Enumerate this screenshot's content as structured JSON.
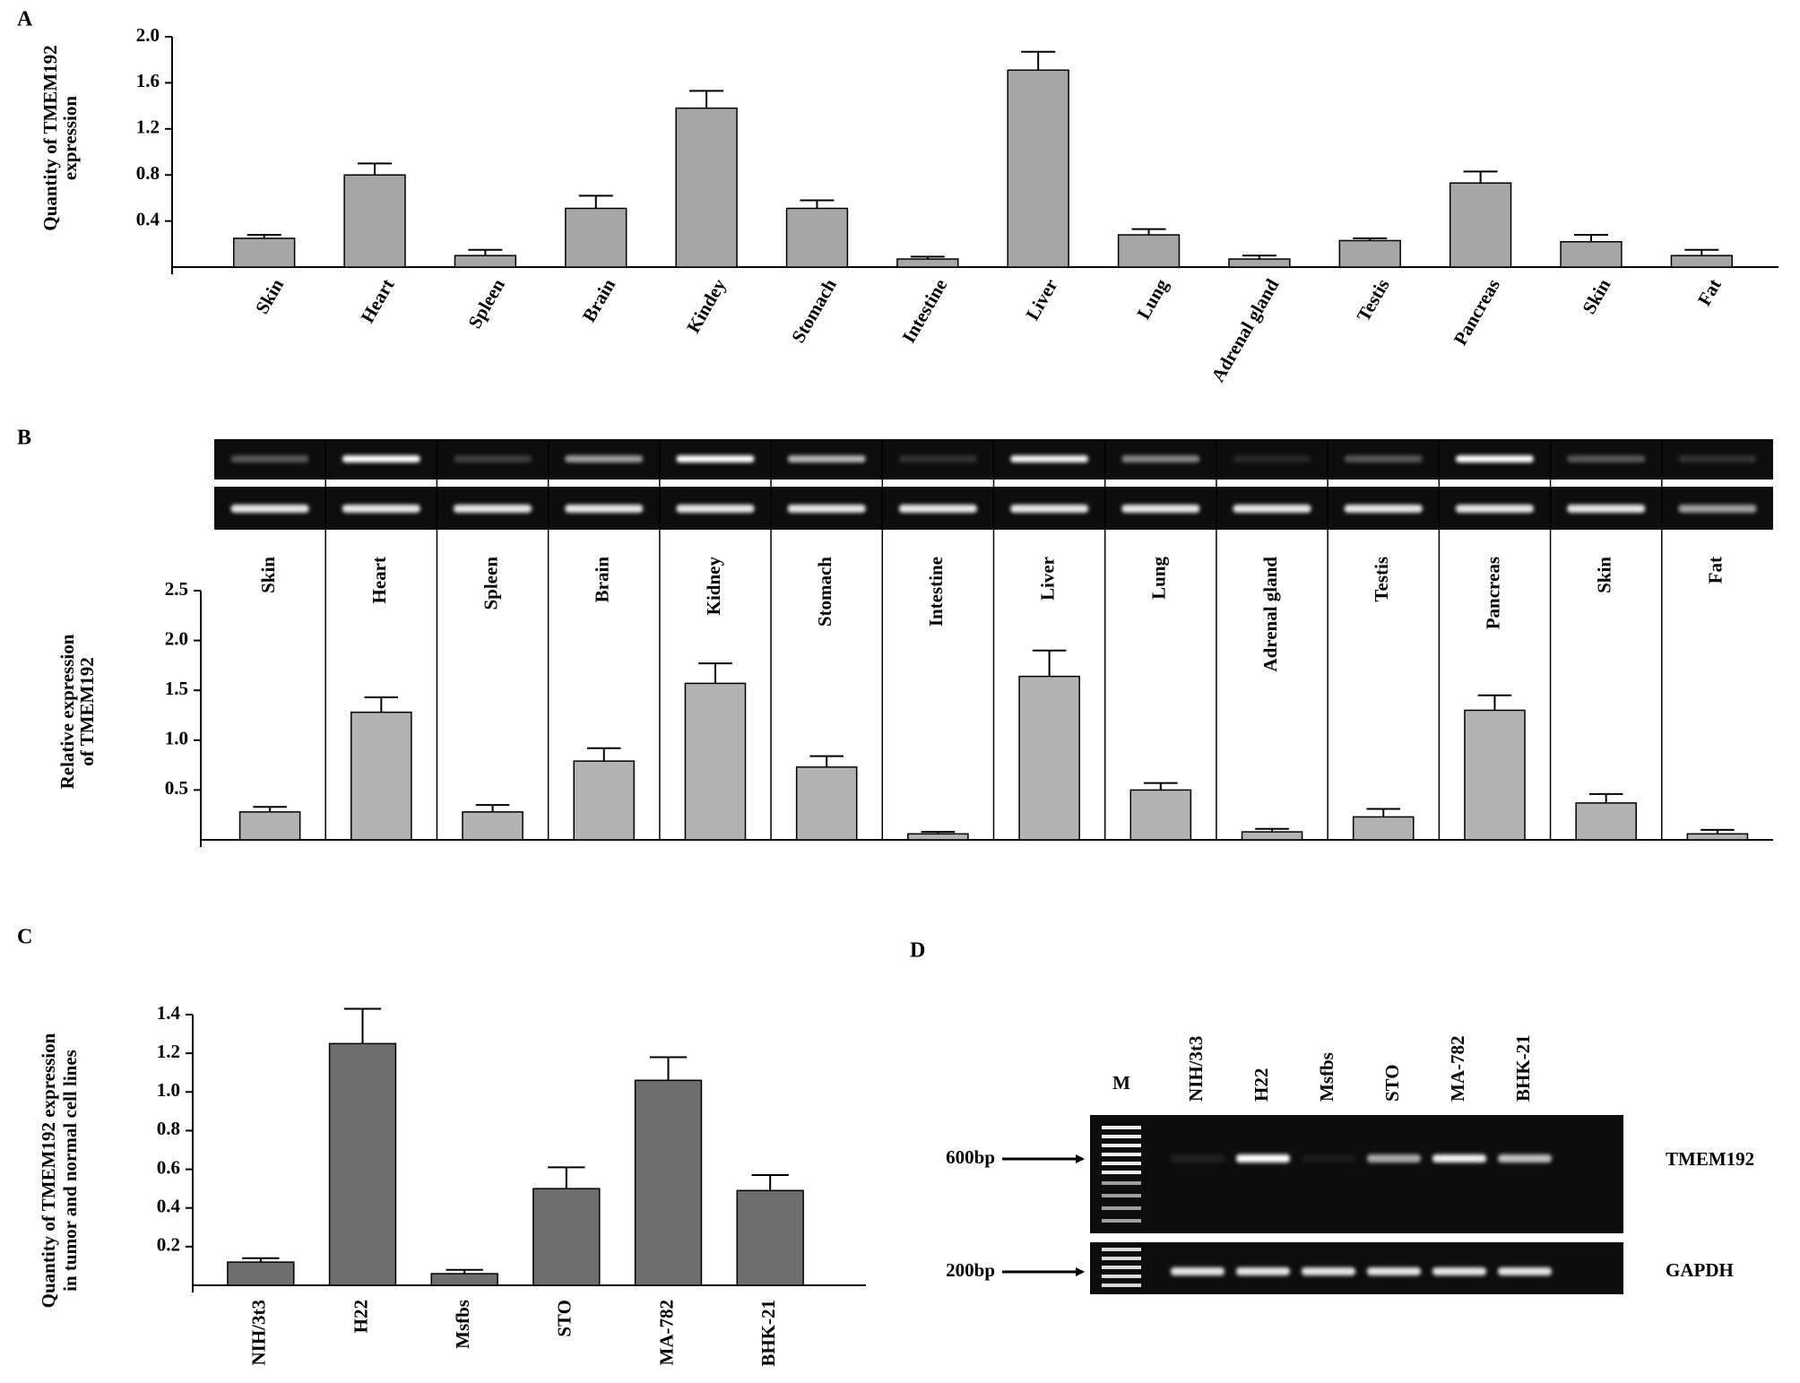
{
  "chart_data": [
    {
      "type": "bar",
      "panel": "A",
      "ylabel": [
        "Quantity of TMEM192",
        "expression"
      ],
      "categories": [
        "Skin",
        "Heart",
        "Spleen",
        "Brain",
        "Kindey",
        "Stomach",
        "Intestine",
        "Liver",
        "Lung",
        "Adrenal gland",
        "Testis",
        "Pancreas",
        "Skin",
        "Fat"
      ],
      "values": [
        0.25,
        0.8,
        0.1,
        0.51,
        1.38,
        0.51,
        0.07,
        1.71,
        0.28,
        0.07,
        0.23,
        0.73,
        0.22,
        0.1
      ],
      "errors": [
        0.03,
        0.1,
        0.05,
        0.11,
        0.15,
        0.07,
        0.02,
        0.16,
        0.05,
        0.03,
        0.02,
        0.1,
        0.06,
        0.05
      ],
      "color": "#a6a6a6",
      "ylim": [
        0,
        2.0
      ],
      "yticks": [
        0.4,
        0.8,
        1.2,
        1.6,
        {
          "value": 2,
          "label": "2.0"
        }
      ]
    },
    {
      "type": "bar",
      "panel": "B",
      "ylabel": [
        "Relative expression",
        "of TMEM192"
      ],
      "categories": [
        "Skin",
        "Heart",
        "Spleen",
        "Brain",
        "Kidney",
        "Stomach",
        "Intestine",
        "Liver",
        "Lung",
        "Adrenal gland",
        "Testis",
        "Pancreas",
        "Skin",
        "Fat"
      ],
      "values": [
        0.28,
        1.28,
        0.28,
        0.79,
        1.57,
        0.73,
        0.06,
        1.64,
        0.5,
        0.08,
        0.23,
        1.3,
        0.37,
        0.06
      ],
      "errors": [
        0.05,
        0.15,
        0.07,
        0.13,
        0.2,
        0.11,
        0.02,
        0.26,
        0.07,
        0.03,
        0.08,
        0.15,
        0.09,
        0.04
      ],
      "color": "#b3b3b3",
      "ylim": [
        0,
        2.5
      ],
      "yticks": [
        0.5,
        {
          "value": 1,
          "label": "1.0"
        },
        1.5,
        {
          "value": 2,
          "label": "2.0"
        },
        2.5
      ]
    },
    {
      "type": "bar",
      "panel": "C",
      "ylabel": [
        "Quantity of TMEM192 expression",
        "in tumor and normal cell lines"
      ],
      "categories": [
        "NIH/3t3",
        "H22",
        "Msfbs",
        "STO",
        "MA-782",
        "BHK-21"
      ],
      "values": [
        0.12,
        1.25,
        0.06,
        0.5,
        1.06,
        0.49
      ],
      "errors": [
        0.02,
        0.18,
        0.02,
        0.11,
        0.12,
        0.08
      ],
      "color": "#6e6e6e",
      "ylim": [
        0,
        1.4
      ],
      "yticks": [
        0.2,
        0.4,
        0.6,
        0.8,
        {
          "value": 1,
          "label": "1.0"
        },
        1.2,
        1.4
      ]
    }
  ],
  "gel": {
    "panel": "D",
    "marker_lane": "M",
    "lanes": [
      "NIH/3t3",
      "H22",
      "Msfbs",
      "STO",
      "MA-782",
      "BHK-21"
    ],
    "bands": [
      {
        "size": "600bp",
        "gene": "TMEM192"
      },
      {
        "size": "200bp",
        "gene": "GAPDH"
      }
    ]
  }
}
